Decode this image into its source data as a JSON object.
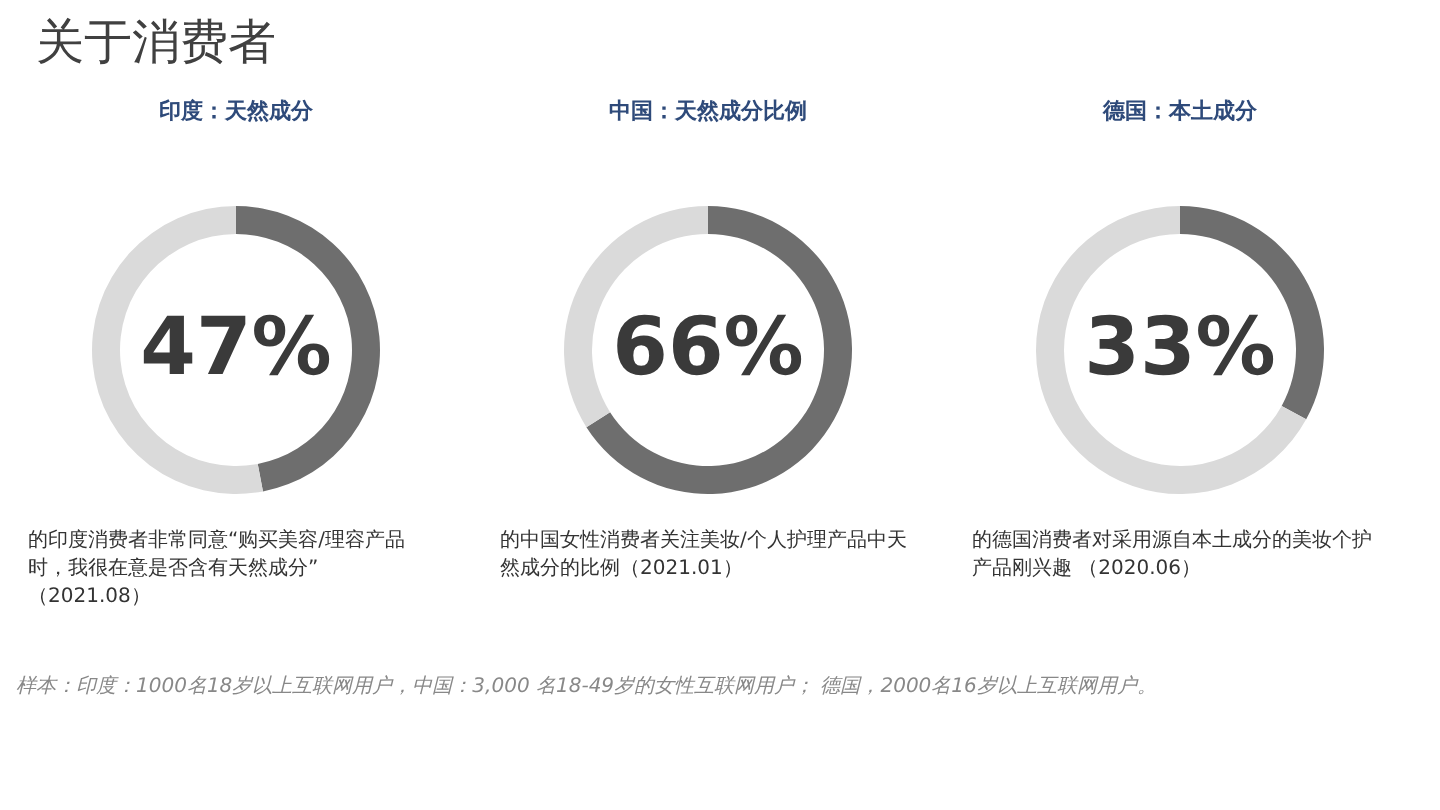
{
  "chart_data": [
    {
      "type": "other",
      "title": "关于消费者",
      "annotations": [
        "样本：印度：1000名18岁以上互联网用户，中国：3,000 名18-49岁的女性互联网用户； 德国，2000名16岁以上互联网用户。"
      ]
    },
    {
      "type": "donut",
      "title": "印度：天然成分",
      "categories": [
        null,
        null
      ],
      "values": [
        47,
        53
      ],
      "colors": [
        "#6e6e6e",
        "#dadada"
      ],
      "value_labels": [
        "47%",
        null
      ],
      "annotations": [
        "的印度消费者非常同意“购买美容/理容产品",
        "时，我很在意是否含有天然成分”",
        "（2021.08）"
      ]
    },
    {
      "type": "donut",
      "title": "中国：天然成分比例",
      "categories": [
        null,
        null
      ],
      "values": [
        66,
        34
      ],
      "colors": [
        "#6e6e6e",
        "#dadada"
      ],
      "value_labels": [
        "66%",
        null
      ],
      "annotations": [
        "的中国女性消费者关注美妆/个人护理产品中天",
        "然成分的比例（2021.01）"
      ]
    },
    {
      "type": "donut",
      "title": "德国：本土成分",
      "categories": [
        null,
        null
      ],
      "values": [
        33,
        67
      ],
      "colors": [
        "#6e6e6e",
        "#dadada"
      ],
      "value_labels": [
        "33%",
        null
      ],
      "annotations": [
        "的德国消费者对采用源自本土成分的美妆个护",
        "产品刚兴趣 （2020.06）"
      ]
    }
  ]
}
